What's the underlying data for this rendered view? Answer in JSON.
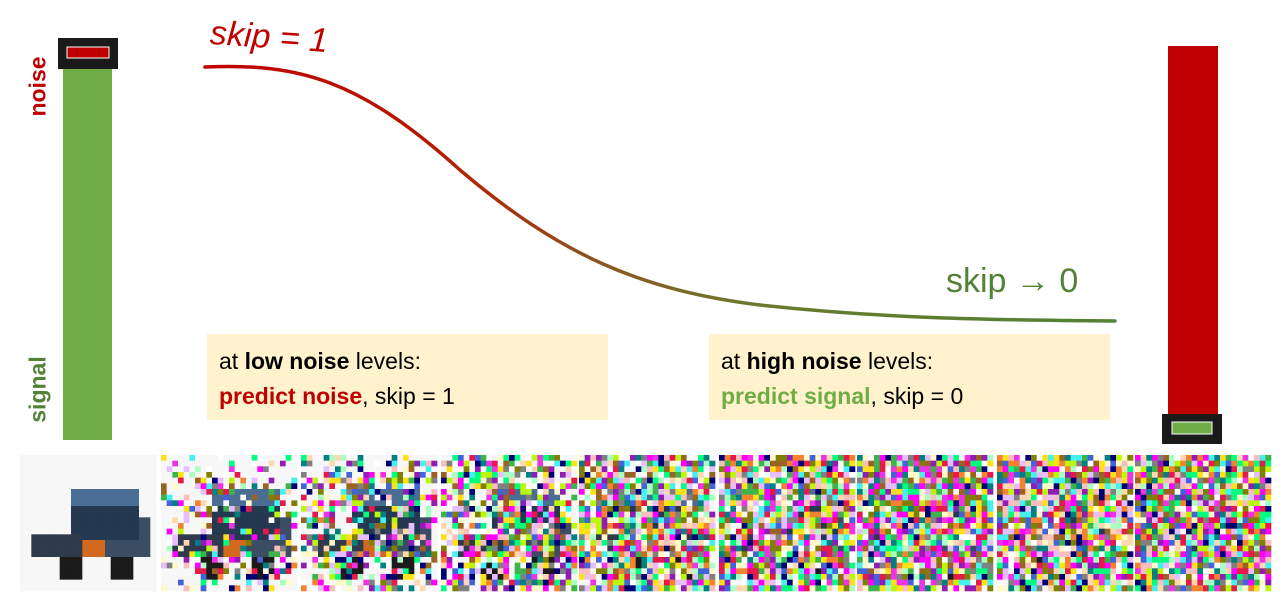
{
  "left_bar": {
    "top_label": "noise",
    "bottom_label": "signal"
  },
  "curve": {
    "start_label": "skip = 1",
    "end_label": "skip → 0",
    "start_color": "#c00000",
    "end_color": "#538135"
  },
  "callouts": {
    "low": {
      "prefix": "at ",
      "emph": "low noise",
      "suffix": " levels:",
      "action": "predict noise",
      "skip": ", skip = 1"
    },
    "high": {
      "prefix": "at ",
      "emph": "high noise",
      "suffix": " levels:",
      "action": "predict signal",
      "skip": ", skip = 0"
    }
  },
  "colors": {
    "noise": "#c00000",
    "signal": "#70ad47",
    "callout_bg": "#fff2cc",
    "marker_frame": "#1a1a1a"
  },
  "noise_strip": {
    "subject": "truck",
    "noise_fractions": [
      0.0,
      0.35,
      0.55,
      0.75,
      0.9,
      0.95,
      0.97,
      0.98,
      0.99
    ]
  }
}
